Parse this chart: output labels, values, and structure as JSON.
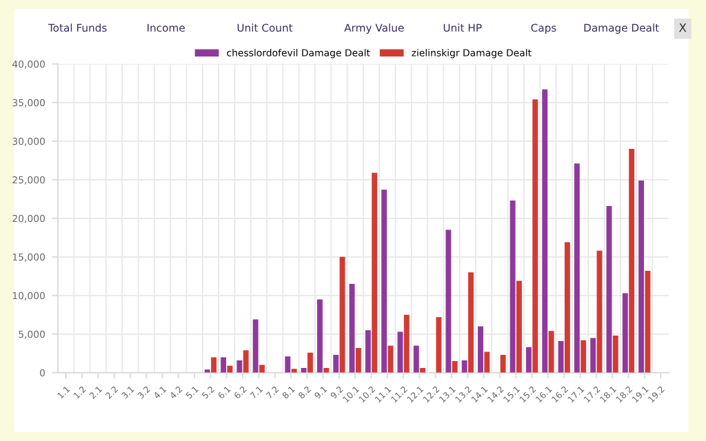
{
  "chart_data": {
    "type": "bar",
    "categories": [
      "1.1",
      "1.2",
      "2.1",
      "2.2",
      "3.1",
      "3.2",
      "4.1",
      "4.2",
      "5.1",
      "5.2",
      "6.1",
      "6.2",
      "7.1",
      "7.2",
      "8.1",
      "8.2",
      "9.1",
      "9.2",
      "10.1",
      "10.2",
      "11.1",
      "11.2",
      "12.1",
      "12.2",
      "13.1",
      "13.2",
      "14.1",
      "14.2",
      "15.1",
      "15.2",
      "16.1",
      "16.2",
      "17.1",
      "17.2",
      "18.1",
      "18.2",
      "19.1",
      "19.2"
    ],
    "series": [
      {
        "name": "chesslordofevil Damage Dealt",
        "color": "#8e3a9c",
        "values": [
          null,
          null,
          null,
          null,
          null,
          null,
          null,
          null,
          null,
          400,
          2000,
          1600,
          6900,
          null,
          2100,
          600,
          9500,
          2300,
          11500,
          5500,
          23700,
          5300,
          3500,
          null,
          18500,
          1600,
          6000,
          null,
          22300,
          3300,
          36700,
          4100,
          27100,
          4500,
          21600,
          10300,
          24900,
          null
        ]
      },
      {
        "name": "zielinskigr Damage Dealt",
        "color": "#d03c33",
        "values": [
          null,
          null,
          null,
          null,
          null,
          null,
          null,
          null,
          null,
          2000,
          900,
          2900,
          1000,
          null,
          500,
          2600,
          600,
          15000,
          3200,
          25900,
          3500,
          7500,
          600,
          7200,
          1500,
          13000,
          2700,
          2300,
          11900,
          35400,
          5400,
          16900,
          4200,
          15800,
          4800,
          29000,
          13200,
          null
        ]
      }
    ],
    "ylim": [
      0,
      40000
    ],
    "yticks": [
      0,
      {
        "value": 5000,
        "label": "5,000"
      },
      {
        "value": 10000,
        "label": "10,000"
      },
      {
        "value": 15000,
        "label": "15,000"
      },
      {
        "value": 20000,
        "label": "20,000"
      },
      {
        "value": 25000,
        "label": "25,000"
      },
      {
        "value": 30000,
        "label": "30,000"
      },
      {
        "value": 35000,
        "label": "35,000"
      },
      {
        "value": 40000,
        "label": "40,000"
      }
    ],
    "grid": true,
    "legend": "top",
    "annotations": [
      "Total Funds",
      "Income",
      "Unit Count",
      "Army Value",
      "Unit HP",
      "Caps",
      "Damage Dealt",
      "X"
    ]
  }
}
